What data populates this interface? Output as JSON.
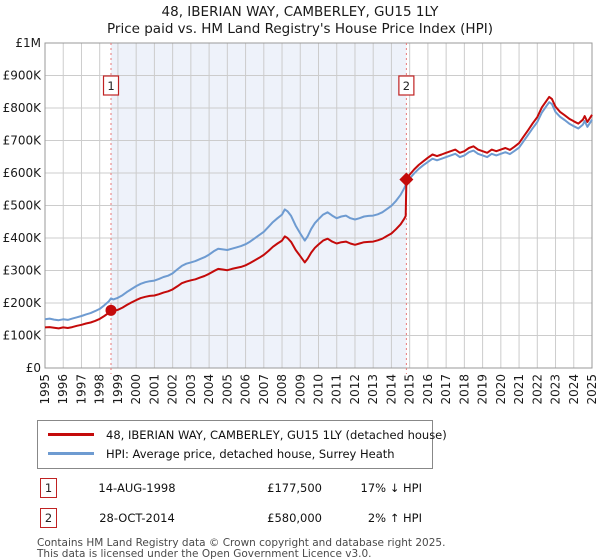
{
  "header": {
    "title": "48, IBERIAN WAY, CAMBERLEY, GU15 1LY",
    "subtitle": "Price paid vs. HM Land Registry's House Price Index (HPI)"
  },
  "chart_data": {
    "type": "line",
    "title": "48, IBERIAN WAY, CAMBERLEY, GU15 1LY",
    "subtitle": "Price paid vs. HM Land Registry's House Price Index (HPI)",
    "value_unit": "GBP_thousands",
    "x_range": [
      1995,
      2025
    ],
    "y_range_k": [
      0,
      1000
    ],
    "grid": true,
    "colors": {
      "grid": "#cccccc",
      "border": "#999999",
      "background": "#ffffff"
    },
    "y_ticks": {
      "values_k": [
        1000,
        900,
        800,
        700,
        600,
        500,
        400,
        300,
        200,
        100,
        0
      ],
      "labels": [
        "£1M",
        "£900K",
        "£800K",
        "£700K",
        "£600K",
        "£500K",
        "£400K",
        "£300K",
        "£200K",
        "£100K",
        "£0"
      ]
    },
    "x_ticks": [
      1995,
      1996,
      1997,
      1998,
      1999,
      2000,
      2001,
      2002,
      2003,
      2004,
      2005,
      2006,
      2007,
      2008,
      2009,
      2010,
      2011,
      2012,
      2013,
      2014,
      2015,
      2016,
      2017,
      2018,
      2019,
      2020,
      2021,
      2022,
      2023,
      2024,
      2025
    ],
    "shaded_region": {
      "from_year": 1998.62,
      "to_year": 2014.82,
      "color": "#eef2fa"
    },
    "sale_marker_lines": {
      "color": "#e87a7a",
      "years": [
        1998.62,
        2014.82
      ]
    },
    "markers": [
      {
        "label": "1",
        "year": 1998.62,
        "value_k": 177.5,
        "shape": "circle",
        "color": "#c40a0a"
      },
      {
        "label": "2",
        "year": 2014.82,
        "value_k": 580,
        "shape": "diamond",
        "color": "#c40a0a"
      }
    ],
    "series": [
      {
        "name": "48, IBERIAN WAY, CAMBERLEY, GU15 1LY (detached house)",
        "color": "#c40a0a",
        "points": [
          [
            1995,
            125
          ],
          [
            1995.25,
            126
          ],
          [
            1995.5,
            124
          ],
          [
            1995.75,
            122
          ],
          [
            1996,
            125
          ],
          [
            1996.25,
            123
          ],
          [
            1996.5,
            126
          ],
          [
            1996.75,
            130
          ],
          [
            1997,
            133
          ],
          [
            1997.25,
            137
          ],
          [
            1997.5,
            140
          ],
          [
            1997.75,
            145
          ],
          [
            1998,
            151
          ],
          [
            1998.25,
            160
          ],
          [
            1998.5,
            170
          ],
          [
            1998.62,
            177.5
          ],
          [
            1998.75,
            175
          ],
          [
            1999,
            179
          ],
          [
            1999.25,
            186
          ],
          [
            1999.5,
            194
          ],
          [
            1999.75,
            202
          ],
          [
            2000,
            209
          ],
          [
            2000.25,
            215
          ],
          [
            2000.5,
            219
          ],
          [
            2000.75,
            222
          ],
          [
            2001,
            223
          ],
          [
            2001.25,
            227
          ],
          [
            2001.5,
            232
          ],
          [
            2001.75,
            236
          ],
          [
            2002,
            242
          ],
          [
            2002.25,
            251
          ],
          [
            2002.5,
            261
          ],
          [
            2002.75,
            266
          ],
          [
            2003,
            270
          ],
          [
            2003.25,
            273
          ],
          [
            2003.5,
            278
          ],
          [
            2003.75,
            283
          ],
          [
            2004,
            290
          ],
          [
            2004.25,
            298
          ],
          [
            2004.5,
            305
          ],
          [
            2004.75,
            303
          ],
          [
            2005,
            301
          ],
          [
            2005.25,
            305
          ],
          [
            2005.5,
            308
          ],
          [
            2005.75,
            311
          ],
          [
            2006,
            316
          ],
          [
            2006.25,
            323
          ],
          [
            2006.5,
            331
          ],
          [
            2006.75,
            339
          ],
          [
            2007,
            348
          ],
          [
            2007.25,
            360
          ],
          [
            2007.5,
            373
          ],
          [
            2007.75,
            383
          ],
          [
            2008,
            392
          ],
          [
            2008.15,
            405
          ],
          [
            2008.3,
            400
          ],
          [
            2008.5,
            388
          ],
          [
            2008.75,
            363
          ],
          [
            2009,
            344
          ],
          [
            2009.25,
            325
          ],
          [
            2009.4,
            336
          ],
          [
            2009.6,
            355
          ],
          [
            2009.8,
            370
          ],
          [
            2010,
            380
          ],
          [
            2010.25,
            392
          ],
          [
            2010.5,
            398
          ],
          [
            2010.75,
            389
          ],
          [
            2011,
            383
          ],
          [
            2011.25,
            387
          ],
          [
            2011.5,
            389
          ],
          [
            2011.75,
            383
          ],
          [
            2012,
            379
          ],
          [
            2012.25,
            383
          ],
          [
            2012.5,
            387
          ],
          [
            2012.75,
            388
          ],
          [
            2013,
            389
          ],
          [
            2013.25,
            393
          ],
          [
            2013.5,
            398
          ],
          [
            2013.75,
            406
          ],
          [
            2014,
            414
          ],
          [
            2014.25,
            427
          ],
          [
            2014.5,
            442
          ],
          [
            2014.7,
            459
          ],
          [
            2014.78,
            468
          ],
          [
            2014.82,
            580
          ],
          [
            2015,
            595
          ],
          [
            2015.25,
            611
          ],
          [
            2015.5,
            625
          ],
          [
            2015.75,
            636
          ],
          [
            2016,
            647
          ],
          [
            2016.25,
            657
          ],
          [
            2016.5,
            652
          ],
          [
            2016.75,
            657
          ],
          [
            2017,
            662
          ],
          [
            2017.25,
            667
          ],
          [
            2017.5,
            672
          ],
          [
            2017.75,
            662
          ],
          [
            2018,
            667
          ],
          [
            2018.25,
            677
          ],
          [
            2018.5,
            682
          ],
          [
            2018.75,
            672
          ],
          [
            2019,
            667
          ],
          [
            2019.25,
            662
          ],
          [
            2019.5,
            672
          ],
          [
            2019.75,
            667
          ],
          [
            2020,
            672
          ],
          [
            2020.25,
            677
          ],
          [
            2020.5,
            671
          ],
          [
            2020.75,
            681
          ],
          [
            2021,
            692
          ],
          [
            2021.25,
            712
          ],
          [
            2021.5,
            732
          ],
          [
            2021.75,
            753
          ],
          [
            2022,
            772
          ],
          [
            2022.25,
            802
          ],
          [
            2022.5,
            822
          ],
          [
            2022.65,
            834
          ],
          [
            2022.8,
            828
          ],
          [
            2023,
            804
          ],
          [
            2023.25,
            788
          ],
          [
            2023.5,
            778
          ],
          [
            2023.75,
            767
          ],
          [
            2024,
            759
          ],
          [
            2024.25,
            752
          ],
          [
            2024.5,
            764
          ],
          [
            2024.6,
            775
          ],
          [
            2024.75,
            757
          ],
          [
            2025,
            779
          ]
        ]
      },
      {
        "name": "HPI: Average price, detached house, Surrey Heath",
        "color": "#6e9bd1",
        "points": [
          [
            1995,
            150
          ],
          [
            1995.25,
            152
          ],
          [
            1995.5,
            149
          ],
          [
            1995.75,
            147
          ],
          [
            1996,
            150
          ],
          [
            1996.25,
            148
          ],
          [
            1996.5,
            152
          ],
          [
            1996.75,
            156
          ],
          [
            1997,
            160
          ],
          [
            1997.25,
            165
          ],
          [
            1997.5,
            169
          ],
          [
            1997.75,
            175
          ],
          [
            1998,
            182
          ],
          [
            1998.25,
            193
          ],
          [
            1998.5,
            205
          ],
          [
            1998.62,
            214
          ],
          [
            1998.75,
            211
          ],
          [
            1999,
            216
          ],
          [
            1999.25,
            224
          ],
          [
            1999.5,
            234
          ],
          [
            1999.75,
            243
          ],
          [
            2000,
            252
          ],
          [
            2000.25,
            259
          ],
          [
            2000.5,
            264
          ],
          [
            2000.75,
            267
          ],
          [
            2001,
            269
          ],
          [
            2001.25,
            274
          ],
          [
            2001.5,
            280
          ],
          [
            2001.75,
            284
          ],
          [
            2002,
            291
          ],
          [
            2002.25,
            303
          ],
          [
            2002.5,
            314
          ],
          [
            2002.75,
            321
          ],
          [
            2003,
            325
          ],
          [
            2003.25,
            329
          ],
          [
            2003.5,
            335
          ],
          [
            2003.75,
            341
          ],
          [
            2004,
            349
          ],
          [
            2004.25,
            359
          ],
          [
            2004.5,
            367
          ],
          [
            2004.75,
            365
          ],
          [
            2005,
            363
          ],
          [
            2005.25,
            367
          ],
          [
            2005.5,
            371
          ],
          [
            2005.75,
            375
          ],
          [
            2006,
            381
          ],
          [
            2006.25,
            389
          ],
          [
            2006.5,
            399
          ],
          [
            2006.75,
            409
          ],
          [
            2007,
            419
          ],
          [
            2007.25,
            434
          ],
          [
            2007.5,
            449
          ],
          [
            2007.75,
            461
          ],
          [
            2008,
            472
          ],
          [
            2008.15,
            488
          ],
          [
            2008.3,
            482
          ],
          [
            2008.5,
            468
          ],
          [
            2008.75,
            438
          ],
          [
            2009,
            414
          ],
          [
            2009.25,
            392
          ],
          [
            2009.4,
            405
          ],
          [
            2009.6,
            428
          ],
          [
            2009.8,
            446
          ],
          [
            2010,
            458
          ],
          [
            2010.25,
            472
          ],
          [
            2010.5,
            479
          ],
          [
            2010.75,
            469
          ],
          [
            2011,
            461
          ],
          [
            2011.25,
            466
          ],
          [
            2011.5,
            469
          ],
          [
            2011.75,
            461
          ],
          [
            2012,
            457
          ],
          [
            2012.25,
            461
          ],
          [
            2012.5,
            466
          ],
          [
            2012.75,
            468
          ],
          [
            2013,
            469
          ],
          [
            2013.25,
            473
          ],
          [
            2013.5,
            479
          ],
          [
            2013.75,
            489
          ],
          [
            2014,
            499
          ],
          [
            2014.25,
            514
          ],
          [
            2014.5,
            533
          ],
          [
            2014.7,
            553
          ],
          [
            2014.82,
            568
          ],
          [
            2015,
            583
          ],
          [
            2015.25,
            599
          ],
          [
            2015.5,
            613
          ],
          [
            2015.75,
            624
          ],
          [
            2016,
            634
          ],
          [
            2016.25,
            644
          ],
          [
            2016.5,
            639
          ],
          [
            2016.75,
            644
          ],
          [
            2017,
            649
          ],
          [
            2017.25,
            654
          ],
          [
            2017.5,
            659
          ],
          [
            2017.75,
            649
          ],
          [
            2018,
            654
          ],
          [
            2018.25,
            664
          ],
          [
            2018.5,
            669
          ],
          [
            2018.75,
            659
          ],
          [
            2019,
            654
          ],
          [
            2019.25,
            649
          ],
          [
            2019.5,
            659
          ],
          [
            2019.75,
            654
          ],
          [
            2020,
            659
          ],
          [
            2020.25,
            664
          ],
          [
            2020.5,
            658
          ],
          [
            2020.75,
            668
          ],
          [
            2021,
            678
          ],
          [
            2021.25,
            698
          ],
          [
            2021.5,
            718
          ],
          [
            2021.75,
            738
          ],
          [
            2022,
            757
          ],
          [
            2022.25,
            786
          ],
          [
            2022.5,
            806
          ],
          [
            2022.65,
            818
          ],
          [
            2022.8,
            812
          ],
          [
            2023,
            788
          ],
          [
            2023.25,
            773
          ],
          [
            2023.5,
            763
          ],
          [
            2023.75,
            752
          ],
          [
            2024,
            744
          ],
          [
            2024.25,
            737
          ],
          [
            2024.5,
            749
          ],
          [
            2024.6,
            760
          ],
          [
            2024.75,
            742
          ],
          [
            2025,
            764
          ]
        ]
      }
    ],
    "legend_position": "bottom-left"
  },
  "legend": {
    "entries": [
      {
        "label": "48, IBERIAN WAY, CAMBERLEY, GU15 1LY (detached house)",
        "color": "#c40a0a"
      },
      {
        "label": "HPI: Average price, detached house, Surrey Heath",
        "color": "#6e9bd1"
      }
    ]
  },
  "annotations": [
    {
      "id": "1",
      "date": "14-AUG-1998",
      "price": "£177,500",
      "vs_hpi": "17% ↓ HPI"
    },
    {
      "id": "2",
      "date": "28-OCT-2014",
      "price": "£580,000",
      "vs_hpi": "2% ↑ HPI"
    }
  ],
  "footer": {
    "line1": "Contains HM Land Registry data © Crown copyright and database right 2025.",
    "line2": "This data is licensed under the Open Government Licence v3.0."
  }
}
